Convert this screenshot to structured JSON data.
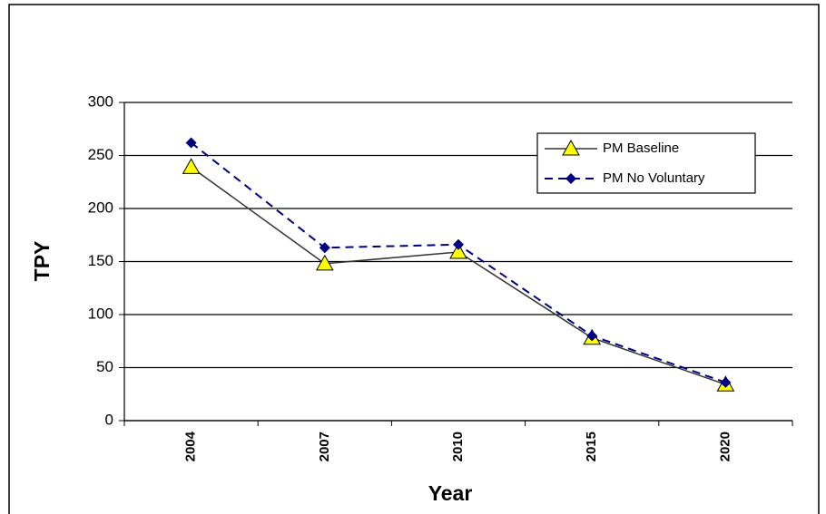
{
  "chart_data": {
    "type": "line",
    "categories": [
      "2004",
      "2007",
      "2010",
      "2015",
      "2020"
    ],
    "series": [
      {
        "name": "PM Baseline",
        "color": "#333333",
        "marker_color": "#ffff00",
        "marker": "triangle",
        "dash": false,
        "values": [
          239,
          148,
          159,
          78,
          34
        ]
      },
      {
        "name": "PM No Voluntary",
        "color": "#000080",
        "marker_color": "#000080",
        "marker": "diamond",
        "dash": true,
        "values": [
          262,
          163,
          166,
          80,
          36
        ]
      }
    ],
    "x_label": "Year",
    "y_label": "TPY",
    "ylim": [
      0,
      300
    ],
    "yticks": [
      0,
      50,
      100,
      150,
      200,
      250,
      300
    ],
    "grid": true,
    "legend": "upper right"
  }
}
